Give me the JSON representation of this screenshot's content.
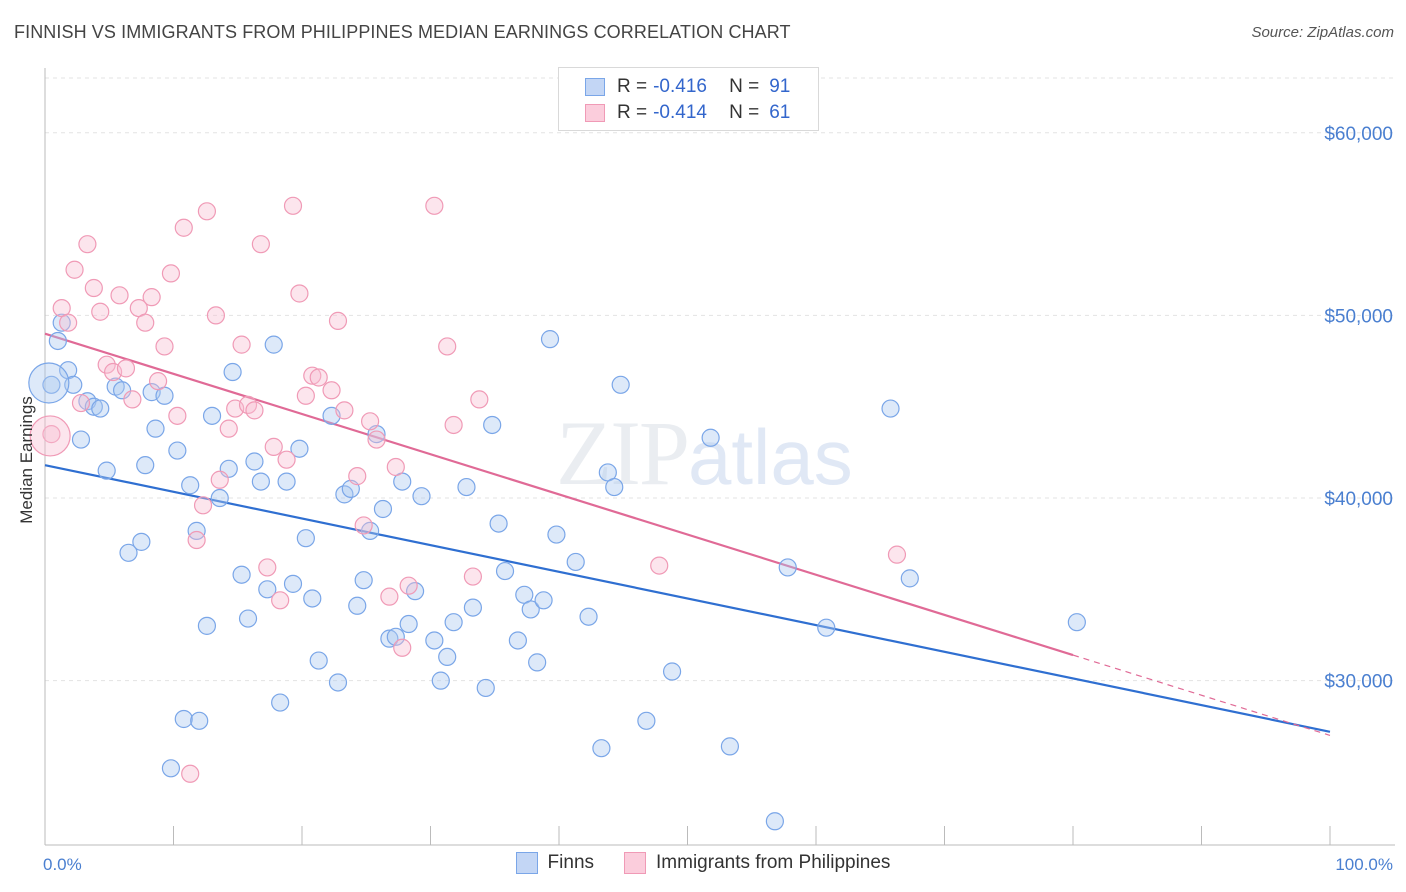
{
  "header": {
    "title": "FINNISH VS IMMIGRANTS FROM PHILIPPINES MEDIAN EARNINGS CORRELATION CHART",
    "source": "Source: ZipAtlas.com"
  },
  "watermark": {
    "zip": "ZIP",
    "atlas": "atlas"
  },
  "legend": {
    "r_label": "R =",
    "n_label": "N =",
    "rows": [
      {
        "r": "-0.416",
        "n": "91"
      },
      {
        "r": "-0.414",
        "n": "61"
      }
    ]
  },
  "chart_data": {
    "type": "scatter",
    "title": "FINNISH VS IMMIGRANTS FROM PHILIPPINES MEDIAN EARNINGS CORRELATION CHART",
    "xlabel": "",
    "ylabel": "Median Earnings",
    "xlim": [
      0,
      100
    ],
    "ylim": [
      21000,
      63000
    ],
    "x_tick_labels": [
      "0.0%",
      "100.0%"
    ],
    "y_ticks": [
      30000,
      40000,
      50000,
      60000
    ],
    "y_tick_labels": [
      "$30,000",
      "$40,000",
      "$50,000",
      "$60,000"
    ],
    "grid": true,
    "legend_position": "top-center",
    "colors": {
      "finns": "#7aa6e8",
      "philippines": "#f09ab6",
      "finns_line": "#2f6fd1",
      "philippines_line": "#e06a96"
    },
    "series": [
      {
        "name": "Finns",
        "r": -0.416,
        "n": 91,
        "trend": {
          "x": [
            0,
            100
          ],
          "y": [
            41800,
            27200
          ]
        },
        "points": [
          [
            0.5,
            46200
          ],
          [
            1,
            48600
          ],
          [
            1.3,
            49600
          ],
          [
            1.8,
            47000
          ],
          [
            2.2,
            46200
          ],
          [
            2.8,
            43200
          ],
          [
            3.3,
            45300
          ],
          [
            3.8,
            45000
          ],
          [
            4.3,
            44900
          ],
          [
            4.8,
            41500
          ],
          [
            5.5,
            46100
          ],
          [
            6,
            45900
          ],
          [
            6.5,
            37000
          ],
          [
            7.5,
            37600
          ],
          [
            7.8,
            41800
          ],
          [
            8.3,
            45800
          ],
          [
            8.6,
            43800
          ],
          [
            9.3,
            45600
          ],
          [
            9.8,
            25200
          ],
          [
            10.3,
            42600
          ],
          [
            10.8,
            27900
          ],
          [
            11.3,
            40700
          ],
          [
            11.8,
            38200
          ],
          [
            12,
            27800
          ],
          [
            12.6,
            33000
          ],
          [
            13,
            44500
          ],
          [
            13.6,
            40000
          ],
          [
            14.3,
            41600
          ],
          [
            14.6,
            46900
          ],
          [
            15.3,
            35800
          ],
          [
            15.8,
            33400
          ],
          [
            16.3,
            42000
          ],
          [
            16.8,
            40900
          ],
          [
            17.3,
            35000
          ],
          [
            17.8,
            48400
          ],
          [
            18.3,
            28800
          ],
          [
            18.8,
            40900
          ],
          [
            19.3,
            35300
          ],
          [
            19.8,
            42700
          ],
          [
            20.3,
            37800
          ],
          [
            20.8,
            34500
          ],
          [
            21.3,
            31100
          ],
          [
            22.3,
            44500
          ],
          [
            22.8,
            29900
          ],
          [
            23.3,
            40200
          ],
          [
            23.8,
            40500
          ],
          [
            24.3,
            34100
          ],
          [
            24.8,
            35500
          ],
          [
            25.3,
            38200
          ],
          [
            25.8,
            43500
          ],
          [
            26.3,
            39400
          ],
          [
            26.8,
            32300
          ],
          [
            27.3,
            32400
          ],
          [
            27.8,
            40900
          ],
          [
            28.3,
            33100
          ],
          [
            28.8,
            34900
          ],
          [
            29.3,
            40100
          ],
          [
            30.3,
            32200
          ],
          [
            30.8,
            30000
          ],
          [
            31.3,
            31300
          ],
          [
            31.8,
            33200
          ],
          [
            32.8,
            40600
          ],
          [
            33.3,
            34000
          ],
          [
            34.3,
            29600
          ],
          [
            34.8,
            44000
          ],
          [
            35.3,
            38600
          ],
          [
            35.8,
            36000
          ],
          [
            36.8,
            32200
          ],
          [
            37.3,
            34700
          ],
          [
            37.8,
            33900
          ],
          [
            38.3,
            31000
          ],
          [
            38.8,
            34400
          ],
          [
            39.3,
            48700
          ],
          [
            39.8,
            38000
          ],
          [
            41.3,
            36500
          ],
          [
            42.3,
            33500
          ],
          [
            43.3,
            26300
          ],
          [
            43.8,
            41400
          ],
          [
            44.3,
            40600
          ],
          [
            44.8,
            46200
          ],
          [
            46.8,
            27800
          ],
          [
            48.8,
            30500
          ],
          [
            51.8,
            43300
          ],
          [
            53.3,
            26400
          ],
          [
            56.8,
            22300
          ],
          [
            57.8,
            36200
          ],
          [
            60.8,
            32900
          ],
          [
            65.8,
            44900
          ],
          [
            67.3,
            35600
          ],
          [
            80.3,
            33200
          ],
          [
            0.3,
            46300
          ]
        ]
      },
      {
        "name": "Immigrants from Philippines",
        "r": -0.414,
        "n": 61,
        "trend": {
          "x": [
            0,
            80
          ],
          "y": [
            49000,
            31400
          ],
          "dashed_to": {
            "x": 100,
            "y": 27000
          }
        },
        "points": [
          [
            0.5,
            43500
          ],
          [
            1.3,
            50400
          ],
          [
            1.8,
            49600
          ],
          [
            2.3,
            52500
          ],
          [
            2.8,
            45200
          ],
          [
            3.3,
            53900
          ],
          [
            3.8,
            51500
          ],
          [
            4.3,
            50200
          ],
          [
            4.8,
            47300
          ],
          [
            5.3,
            46900
          ],
          [
            5.8,
            51100
          ],
          [
            6.3,
            47100
          ],
          [
            6.8,
            45400
          ],
          [
            7.3,
            50400
          ],
          [
            7.8,
            49600
          ],
          [
            8.3,
            51000
          ],
          [
            8.8,
            46400
          ],
          [
            9.3,
            48300
          ],
          [
            9.8,
            52300
          ],
          [
            10.3,
            44500
          ],
          [
            10.8,
            54800
          ],
          [
            11.3,
            24900
          ],
          [
            11.8,
            37700
          ],
          [
            12.3,
            39600
          ],
          [
            12.6,
            55700
          ],
          [
            13.3,
            50000
          ],
          [
            13.6,
            41000
          ],
          [
            14.3,
            43800
          ],
          [
            14.8,
            44900
          ],
          [
            15.3,
            48400
          ],
          [
            15.8,
            45100
          ],
          [
            16.3,
            44800
          ],
          [
            16.8,
            53900
          ],
          [
            17.3,
            36200
          ],
          [
            17.8,
            42800
          ],
          [
            18.3,
            34400
          ],
          [
            18.8,
            42100
          ],
          [
            19.3,
            56000
          ],
          [
            19.8,
            51200
          ],
          [
            20.3,
            45600
          ],
          [
            20.8,
            46700
          ],
          [
            21.3,
            46600
          ],
          [
            22.3,
            45900
          ],
          [
            22.8,
            49700
          ],
          [
            23.3,
            44800
          ],
          [
            24.3,
            41200
          ],
          [
            24.8,
            38500
          ],
          [
            25.3,
            44200
          ],
          [
            25.8,
            43200
          ],
          [
            26.8,
            34600
          ],
          [
            27.3,
            41700
          ],
          [
            27.8,
            31800
          ],
          [
            28.3,
            35200
          ],
          [
            30.3,
            56000
          ],
          [
            31.3,
            48300
          ],
          [
            31.8,
            44000
          ],
          [
            33.3,
            35700
          ],
          [
            33.8,
            45400
          ],
          [
            47.8,
            36300
          ],
          [
            66.3,
            36900
          ],
          [
            0.4,
            43400
          ]
        ]
      }
    ]
  }
}
